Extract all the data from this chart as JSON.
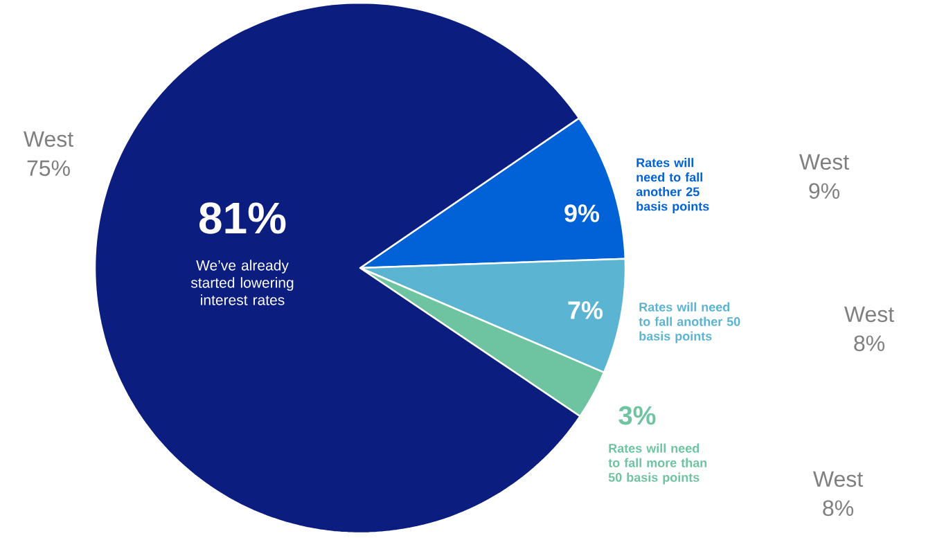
{
  "chart_data": {
    "type": "pie",
    "categories": [
      "Rates will need to fall another 25 basis points",
      "Rates will need to fall another 50 basis points",
      "Rates will need to fall more than 50 basis points",
      "We’ve already started lowering interest rates"
    ],
    "values": [
      9,
      7,
      3,
      81
    ],
    "value_labels": [
      "9%",
      "7%",
      "3%",
      "81%"
    ],
    "colors": [
      "#0062d6",
      "#5bb4d2",
      "#6ec4a0",
      "#0b1d7e"
    ],
    "annotations": [
      "West 75%",
      "West 9%",
      "West 8%",
      "West 8%"
    ]
  }
}
